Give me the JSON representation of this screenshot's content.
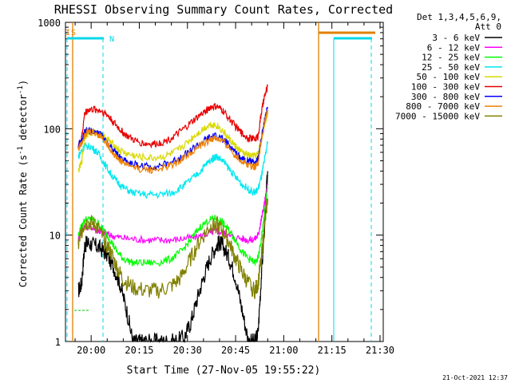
{
  "chart_data": {
    "type": "line",
    "title": "RHESSI Observing Summary Count Rates, Corrected",
    "xlabel": "Start Time (27-Nov-05 19:55:22)",
    "ylabel_main": "Corrected Count Rate (s",
    "ylabel_sup1": "-1",
    "ylabel_mid": " detector",
    "ylabel_sup2": "-1",
    "ylabel_end": ")",
    "y_scale": "log",
    "ylim": [
      1,
      1000
    ],
    "xlim_min": [
      -3,
      37
    ],
    "x_ticks": [
      {
        "min": 5,
        "label": "20:00"
      },
      {
        "min": 20,
        "label": "20:15"
      },
      {
        "min": 35,
        "label": "20:30"
      },
      {
        "min": 50,
        "label": "20:45"
      },
      {
        "min": 65,
        "label": "21:00"
      },
      {
        "min": 80,
        "label": "21:15"
      },
      {
        "min": 95,
        "label": "21:30"
      }
    ],
    "y_ticks": [
      {
        "value": 1,
        "label": "1"
      },
      {
        "value": 10,
        "label": "10"
      },
      {
        "value": 100,
        "label": "100"
      },
      {
        "value": 1000,
        "label": "1000"
      }
    ],
    "legend_header": [
      "Det 1,3,4,5,6,9,",
      "Att 0"
    ],
    "legend_position": "right",
    "timestamp": "21-Oct-2021 12:37",
    "flags": [
      {
        "label": "I",
        "color": "#e08000"
      },
      {
        "label": "S",
        "color": "#e08000"
      },
      {
        "label": "N",
        "color": "#00d8e8"
      }
    ],
    "series": [
      {
        "name": "3 - 6 keV",
        "color": "#000000",
        "points": [
          [
            1,
            3
          ],
          [
            2,
            3.5
          ],
          [
            3,
            8
          ],
          [
            4,
            8.5
          ],
          [
            6,
            8
          ],
          [
            8,
            7.5
          ],
          [
            10,
            6.5
          ],
          [
            12,
            5
          ],
          [
            14,
            3.5
          ],
          [
            16,
            2
          ],
          [
            18,
            1
          ],
          [
            20,
            1
          ],
          [
            22,
            1
          ],
          [
            25,
            1
          ],
          [
            28,
            1
          ],
          [
            31,
            1
          ],
          [
            34,
            1.1
          ],
          [
            36,
            1.5
          ],
          [
            38,
            2.5
          ],
          [
            40,
            4
          ],
          [
            42,
            6
          ],
          [
            44,
            8
          ],
          [
            45,
            8.5
          ],
          [
            46,
            8
          ],
          [
            48,
            6
          ],
          [
            50,
            4
          ],
          [
            52,
            2
          ],
          [
            54,
            1
          ],
          [
            56,
            1
          ],
          [
            57,
            1.2
          ],
          [
            58,
            4
          ],
          [
            59,
            12
          ],
          [
            60,
            40
          ]
        ]
      },
      {
        "name": "6 - 12 keV",
        "color": "#ff00ff",
        "points": [
          [
            1,
            9
          ],
          [
            2,
            11
          ],
          [
            3,
            12
          ],
          [
            5,
            12
          ],
          [
            7,
            11
          ],
          [
            9,
            10.5
          ],
          [
            11,
            10
          ],
          [
            14,
            9.5
          ],
          [
            18,
            9.2
          ],
          [
            22,
            9
          ],
          [
            26,
            9
          ],
          [
            30,
            9
          ],
          [
            34,
            9.3
          ],
          [
            38,
            9.6
          ],
          [
            42,
            10.5
          ],
          [
            44,
            11
          ],
          [
            46,
            10.5
          ],
          [
            48,
            9.8
          ],
          [
            52,
            9.3
          ],
          [
            54,
            9
          ],
          [
            56,
            9.2
          ],
          [
            57,
            10
          ],
          [
            58,
            14
          ],
          [
            59,
            20
          ],
          [
            60,
            30
          ]
        ]
      },
      {
        "name": "12 - 25 keV",
        "color": "#00ff00",
        "points": [
          [
            1,
            10
          ],
          [
            2,
            12
          ],
          [
            3,
            14
          ],
          [
            5,
            14
          ],
          [
            7,
            13
          ],
          [
            9,
            11
          ],
          [
            11,
            9
          ],
          [
            13,
            7
          ],
          [
            15,
            6
          ],
          [
            18,
            5.5
          ],
          [
            22,
            5.5
          ],
          [
            26,
            5.5
          ],
          [
            30,
            6
          ],
          [
            33,
            7
          ],
          [
            36,
            9
          ],
          [
            39,
            12
          ],
          [
            42,
            14
          ],
          [
            44,
            14.5
          ],
          [
            46,
            13
          ],
          [
            48,
            11
          ],
          [
            50,
            9
          ],
          [
            52,
            7
          ],
          [
            54,
            6
          ],
          [
            56,
            5.5
          ],
          [
            57,
            6
          ],
          [
            58,
            9
          ],
          [
            59,
            16
          ],
          [
            60,
            28
          ]
        ]
      },
      {
        "name": "25 - 50 keV",
        "color": "#00e8f0",
        "points": [
          [
            1,
            55
          ],
          [
            2,
            62
          ],
          [
            3,
            68
          ],
          [
            5,
            68
          ],
          [
            7,
            60
          ],
          [
            9,
            48
          ],
          [
            11,
            38
          ],
          [
            13,
            32
          ],
          [
            15,
            28
          ],
          [
            18,
            25
          ],
          [
            22,
            24
          ],
          [
            26,
            24
          ],
          [
            30,
            25
          ],
          [
            33,
            28
          ],
          [
            36,
            33
          ],
          [
            39,
            40
          ],
          [
            41,
            47
          ],
          [
            43,
            53
          ],
          [
            44,
            55
          ],
          [
            46,
            50
          ],
          [
            48,
            42
          ],
          [
            50,
            35
          ],
          [
            52,
            30
          ],
          [
            54,
            27
          ],
          [
            56,
            25
          ],
          [
            57,
            27
          ],
          [
            58,
            35
          ],
          [
            59,
            50
          ],
          [
            60,
            75
          ]
        ]
      },
      {
        "name": "50 - 100 keV",
        "color": "#d8d800",
        "points": [
          [
            1,
            40
          ],
          [
            2,
            48
          ],
          [
            3,
            85
          ],
          [
            4,
            90
          ],
          [
            6,
            92
          ],
          [
            8,
            88
          ],
          [
            10,
            80
          ],
          [
            12,
            70
          ],
          [
            14,
            62
          ],
          [
            17,
            57
          ],
          [
            20,
            54
          ],
          [
            24,
            53
          ],
          [
            28,
            55
          ],
          [
            31,
            60
          ],
          [
            34,
            70
          ],
          [
            37,
            85
          ],
          [
            40,
            100
          ],
          [
            42,
            110
          ],
          [
            44,
            108
          ],
          [
            46,
            95
          ],
          [
            48,
            80
          ],
          [
            50,
            68
          ],
          [
            52,
            60
          ],
          [
            54,
            56
          ],
          [
            56,
            55
          ],
          [
            57,
            58
          ],
          [
            58,
            80
          ],
          [
            59,
            110
          ],
          [
            60,
            140
          ]
        ]
      },
      {
        "name": "100 - 300 keV",
        "color": "#e80000",
        "points": [
          [
            1,
            70
          ],
          [
            2,
            80
          ],
          [
            3,
            140
          ],
          [
            4,
            150
          ],
          [
            6,
            152
          ],
          [
            8,
            148
          ],
          [
            10,
            135
          ],
          [
            12,
            115
          ],
          [
            14,
            98
          ],
          [
            16,
            86
          ],
          [
            19,
            76
          ],
          [
            22,
            72
          ],
          [
            25,
            72
          ],
          [
            28,
            76
          ],
          [
            31,
            85
          ],
          [
            34,
            100
          ],
          [
            37,
            120
          ],
          [
            40,
            142
          ],
          [
            42,
            158
          ],
          [
            44,
            162
          ],
          [
            46,
            148
          ],
          [
            48,
            125
          ],
          [
            50,
            105
          ],
          [
            52,
            90
          ],
          [
            54,
            82
          ],
          [
            56,
            80
          ],
          [
            57,
            85
          ],
          [
            58,
            140
          ],
          [
            59,
            200
          ],
          [
            60,
            250
          ]
        ]
      },
      {
        "name": "300 - 800 keV",
        "color": "#0000ff",
        "points": [
          [
            1,
            70
          ],
          [
            2,
            75
          ],
          [
            3,
            92
          ],
          [
            4,
            96
          ],
          [
            6,
            94
          ],
          [
            8,
            88
          ],
          [
            10,
            75
          ],
          [
            12,
            62
          ],
          [
            14,
            54
          ],
          [
            17,
            48
          ],
          [
            20,
            45
          ],
          [
            24,
            44
          ],
          [
            28,
            46
          ],
          [
            31,
            50
          ],
          [
            34,
            57
          ],
          [
            37,
            66
          ],
          [
            40,
            76
          ],
          [
            42,
            83
          ],
          [
            44,
            85
          ],
          [
            46,
            80
          ],
          [
            48,
            70
          ],
          [
            50,
            60
          ],
          [
            52,
            53
          ],
          [
            54,
            50
          ],
          [
            56,
            48
          ],
          [
            57,
            52
          ],
          [
            58,
            80
          ],
          [
            59,
            120
          ],
          [
            60,
            160
          ]
        ]
      },
      {
        "name": "800 - 7000 keV",
        "color": "#f08000",
        "points": [
          [
            1,
            65
          ],
          [
            2,
            72
          ],
          [
            3,
            90
          ],
          [
            4,
            94
          ],
          [
            6,
            92
          ],
          [
            8,
            86
          ],
          [
            10,
            72
          ],
          [
            12,
            58
          ],
          [
            14,
            50
          ],
          [
            17,
            45
          ],
          [
            20,
            42
          ],
          [
            24,
            41
          ],
          [
            28,
            43
          ],
          [
            31,
            47
          ],
          [
            34,
            54
          ],
          [
            37,
            63
          ],
          [
            40,
            72
          ],
          [
            42,
            79
          ],
          [
            44,
            81
          ],
          [
            46,
            76
          ],
          [
            48,
            66
          ],
          [
            50,
            56
          ],
          [
            52,
            49
          ],
          [
            54,
            46
          ],
          [
            56,
            44
          ],
          [
            57,
            48
          ],
          [
            58,
            75
          ],
          [
            59,
            110
          ],
          [
            60,
            150
          ]
        ]
      },
      {
        "name": "7000 - 15000 keV",
        "color": "#808000",
        "points": [
          [
            1,
            8
          ],
          [
            2,
            11
          ],
          [
            3,
            13
          ],
          [
            5,
            13
          ],
          [
            7,
            12
          ],
          [
            9,
            9
          ],
          [
            11,
            7
          ],
          [
            13,
            5
          ],
          [
            15,
            3.8
          ],
          [
            18,
            3.2
          ],
          [
            22,
            3
          ],
          [
            26,
            3
          ],
          [
            30,
            3.3
          ],
          [
            33,
            4
          ],
          [
            36,
            6
          ],
          [
            39,
            9
          ],
          [
            42,
            12
          ],
          [
            44,
            12.5
          ],
          [
            46,
            11
          ],
          [
            48,
            8.5
          ],
          [
            50,
            6
          ],
          [
            52,
            4.5
          ],
          [
            54,
            3.5
          ],
          [
            56,
            3
          ],
          [
            57,
            3.5
          ],
          [
            58,
            6
          ],
          [
            59,
            12
          ],
          [
            60,
            22
          ]
        ]
      }
    ]
  }
}
